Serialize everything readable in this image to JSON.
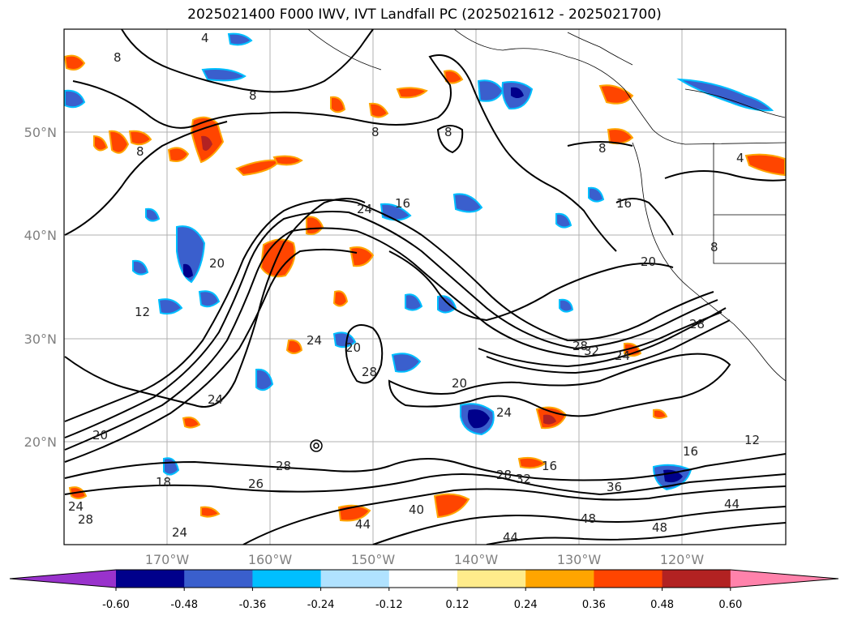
{
  "title": "2025021400 F000 IWV, IVT Landfall PC (2025021612 - 2025021700)",
  "lat_labels": [
    "50°N",
    "40°N",
    "30°N",
    "20°N"
  ],
  "lon_labels": [
    "170°W",
    "160°W",
    "150°W",
    "140°W",
    "130°W",
    "120°W"
  ],
  "contour_labels": [
    "4",
    "8",
    "8",
    "8",
    "8",
    "8",
    "8",
    "16",
    "24",
    "20",
    "12",
    "8",
    "20",
    "24",
    "20",
    "28",
    "20",
    "24",
    "16",
    "24",
    "28",
    "32",
    "24",
    "28",
    "20",
    "24",
    "12",
    "16",
    "16",
    "32",
    "28",
    "36",
    "40",
    "44",
    "44",
    "48",
    "48",
    "44",
    "24",
    "28",
    "18",
    "26",
    "28",
    "4"
  ],
  "colorbar": {
    "ticks": [
      "-0.60",
      "-0.48",
      "-0.36",
      "-0.24",
      "-0.12",
      "0.12",
      "0.24",
      "0.36",
      "0.48",
      "0.60"
    ],
    "colors": [
      "#9932cc",
      "#00008b",
      "#3a5fcd",
      "#00bfff",
      "#b0e2ff",
      "#ffffff",
      "#ffec8b",
      "#ffa500",
      "#ff4500",
      "#b22222",
      "#ff82ab"
    ]
  }
}
